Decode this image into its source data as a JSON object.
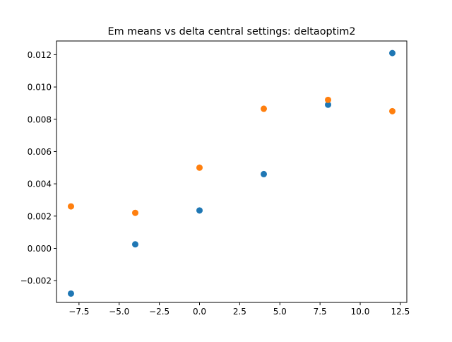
{
  "chart_data": {
    "type": "scatter",
    "title": "Em means vs delta central settings: deltaoptim2",
    "xlabel": "",
    "ylabel": "",
    "xlim": [
      -8.9,
      12.9
    ],
    "ylim": [
      -0.00335,
      0.01285
    ],
    "x_ticks": [
      -7.5,
      -5.0,
      -2.5,
      0.0,
      2.5,
      5.0,
      7.5,
      10.0,
      12.5
    ],
    "x_tick_labels": [
      "−7.5",
      "−5.0",
      "−2.5",
      "0.0",
      "2.5",
      "5.0",
      "7.5",
      "10.0",
      "12.5"
    ],
    "y_ticks": [
      -0.002,
      0.0,
      0.002,
      0.004,
      0.006,
      0.008,
      0.01,
      0.012
    ],
    "y_tick_labels": [
      "−0.002",
      "0.000",
      "0.002",
      "0.004",
      "0.006",
      "0.008",
      "0.010",
      "0.012"
    ],
    "grid": false,
    "legend": "none",
    "series": [
      {
        "color": "#1f77b4",
        "points": [
          {
            "x": -8,
            "y": -0.0028
          },
          {
            "x": -4,
            "y": 0.00025
          },
          {
            "x": 0,
            "y": 0.00235
          },
          {
            "x": 4,
            "y": 0.0046
          },
          {
            "x": 8,
            "y": 0.0089
          },
          {
            "x": 12,
            "y": 0.0121
          }
        ]
      },
      {
        "color": "#ff7f0e",
        "points": [
          {
            "x": -8,
            "y": 0.0026
          },
          {
            "x": -4,
            "y": 0.0022
          },
          {
            "x": 0,
            "y": 0.005
          },
          {
            "x": 4,
            "y": 0.00865
          },
          {
            "x": 8,
            "y": 0.0092
          },
          {
            "x": 12,
            "y": 0.0085
          }
        ]
      }
    ]
  }
}
